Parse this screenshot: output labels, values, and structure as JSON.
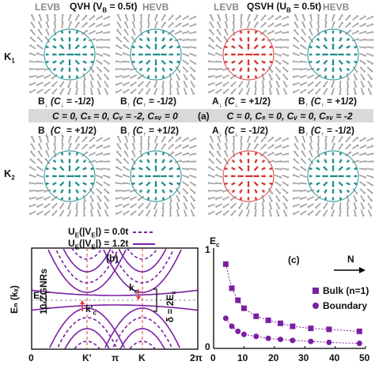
{
  "header": {
    "qvh": {
      "levb": "LEVB",
      "title": "QVH (V",
      "sub": "B",
      "rest": " = 0.5t)",
      "hevb": "HEVB"
    },
    "qsvh": {
      "levb": "LEVB",
      "title": "QSVH (U",
      "sub": "B",
      "rest": " = 0.5t)",
      "hevb": "HEVB"
    }
  },
  "valleys": {
    "k1": "K",
    "k1_sub": "1",
    "k2": "K",
    "k2_sub": "2"
  },
  "panels_row1": [
    {
      "label": "B",
      "spin": "↓",
      "chern": "(C",
      "chern_sub": "↓",
      "value": " = -1/2)",
      "color": "teal"
    },
    {
      "label": "B",
      "spin": "↑",
      "chern": "(C",
      "chern_sub": "↑",
      "value": " = -1/2)",
      "color": "teal"
    },
    {
      "label": "A",
      "spin": "↓",
      "chern": "(C",
      "chern_sub": "↓",
      "value": " = +1/2)",
      "color": "red"
    },
    {
      "label": "B",
      "spin": "↑",
      "chern": "(C",
      "chern_sub": "↑",
      "value": " = +1/2)",
      "color": "teal"
    }
  ],
  "panels_row2": [
    {
      "label": "B",
      "spin": "↓",
      "chern": "(C",
      "chern_sub": "↓",
      "value": " = +1/2)",
      "color": "teal"
    },
    {
      "label": "B",
      "spin": "↑",
      "chern": "(C",
      "chern_sub": "↑",
      "value": " = +1/2)",
      "color": "teal"
    },
    {
      "label": "A",
      "spin": "↓",
      "chern": "(C",
      "chern_sub": "↓",
      "value": " = -1/2)",
      "color": "red"
    },
    {
      "label": "B",
      "spin": "↑",
      "chern": "(C",
      "chern_sub": "↑",
      "value": " = -1/2)",
      "color": "teal"
    }
  ],
  "bar": {
    "left": "C = 0, Cₛ = 0, Cᵥ = -2, Cₛᵥ = 0",
    "tag": "(a)",
    "right": "C = 0, Cₛ = 0, Cᵥ = 0, Cₛᵥ = -2"
  },
  "panel_b": {
    "tag": "(b)",
    "legend": [
      {
        "label": "U",
        "sub": "E",
        "rest": "(|V",
        "sub2": "E",
        "rest2": "|) = 0.0t",
        "style": "dashed"
      },
      {
        "label": "U",
        "sub": "E",
        "rest": "(|V",
        "sub2": "E",
        "rest2": "|) = 1.2t",
        "style": "solid"
      }
    ],
    "ribbon": "10-ZGNRs",
    "ylabel": "Eₙ (kₓ)",
    "ec": "E",
    "ec_sub": "c",
    "kc": "k",
    "kc_sub": "c",
    "kc_prime": "k'",
    "kc_prime_sub": "c",
    "delta": "δ = 2E",
    "delta_sub": "c",
    "xticks": [
      "0",
      "K'",
      "π",
      "K",
      "2π"
    ]
  },
  "panel_c": {
    "tag": "(c)",
    "ylabel": "E",
    "ylabel_sub": "c",
    "arrow_label": "N",
    "legend": [
      {
        "marker": "square",
        "label": "Bulk (n=1)"
      },
      {
        "marker": "circle",
        "label": "Boundary"
      }
    ],
    "xticks": [
      "0",
      "10",
      "20",
      "30",
      "40",
      "50"
    ],
    "yticks": [
      "0",
      "1"
    ]
  },
  "colors": {
    "accent": "#7b1fa2",
    "teal": "#1a8a8a",
    "red": "#d32f2f",
    "bar": "#d9d9d9",
    "arrow": "#9e9e9e"
  },
  "chart_data": {
    "type": "scatter",
    "xlim": [
      0,
      50
    ],
    "ylim": [
      0,
      1
    ],
    "series": [
      {
        "name": "Bulk (n=1)",
        "marker": "square",
        "x": [
          4,
          6,
          8,
          10,
          14,
          18,
          22,
          26,
          32,
          38,
          48
        ],
        "y": [
          0.84,
          0.6,
          0.48,
          0.4,
          0.32,
          0.28,
          0.25,
          0.22,
          0.2,
          0.19,
          0.17
        ]
      },
      {
        "name": "Boundary",
        "marker": "circle",
        "x": [
          4,
          6,
          8,
          10,
          14,
          18,
          22,
          26,
          32,
          38,
          48
        ],
        "y": [
          0.3,
          0.22,
          0.17,
          0.14,
          0.12,
          0.1,
          0.09,
          0.08,
          0.07,
          0.06,
          0.05
        ]
      }
    ]
  }
}
